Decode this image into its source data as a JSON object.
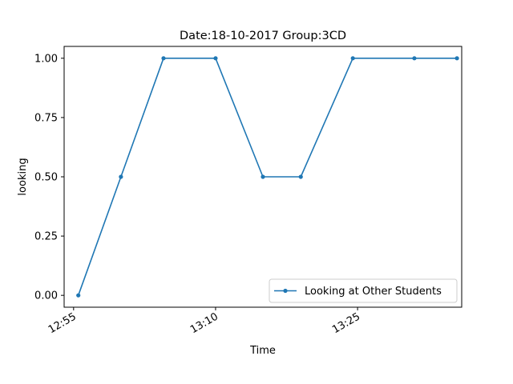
{
  "chart_data": {
    "type": "line",
    "title": "Date:18-10-2017  Group:3CD",
    "xlabel": "Time",
    "ylabel": "looking",
    "x_ticks": [
      "12:55",
      "13:10",
      "13:25"
    ],
    "y_ticks": [
      "0.00",
      "0.25",
      "0.50",
      "0.75",
      "1.00"
    ],
    "ylim": [
      -0.05,
      1.05
    ],
    "xlim": [
      "12:54:00",
      "13:36:00"
    ],
    "grid": false,
    "legend_position": "lower right",
    "series": [
      {
        "name": "Looking at Other Students",
        "color": "#1f77b4",
        "marker": "circle",
        "x": [
          "12:55:30",
          "13:00:00",
          "13:04:30",
          "13:10:00",
          "13:15:00",
          "13:19:00",
          "13:24:30",
          "13:31:00",
          "13:35:30"
        ],
        "y": [
          0.0,
          0.5,
          1.0,
          1.0,
          0.5,
          0.5,
          1.0,
          1.0,
          1.0
        ]
      }
    ]
  }
}
